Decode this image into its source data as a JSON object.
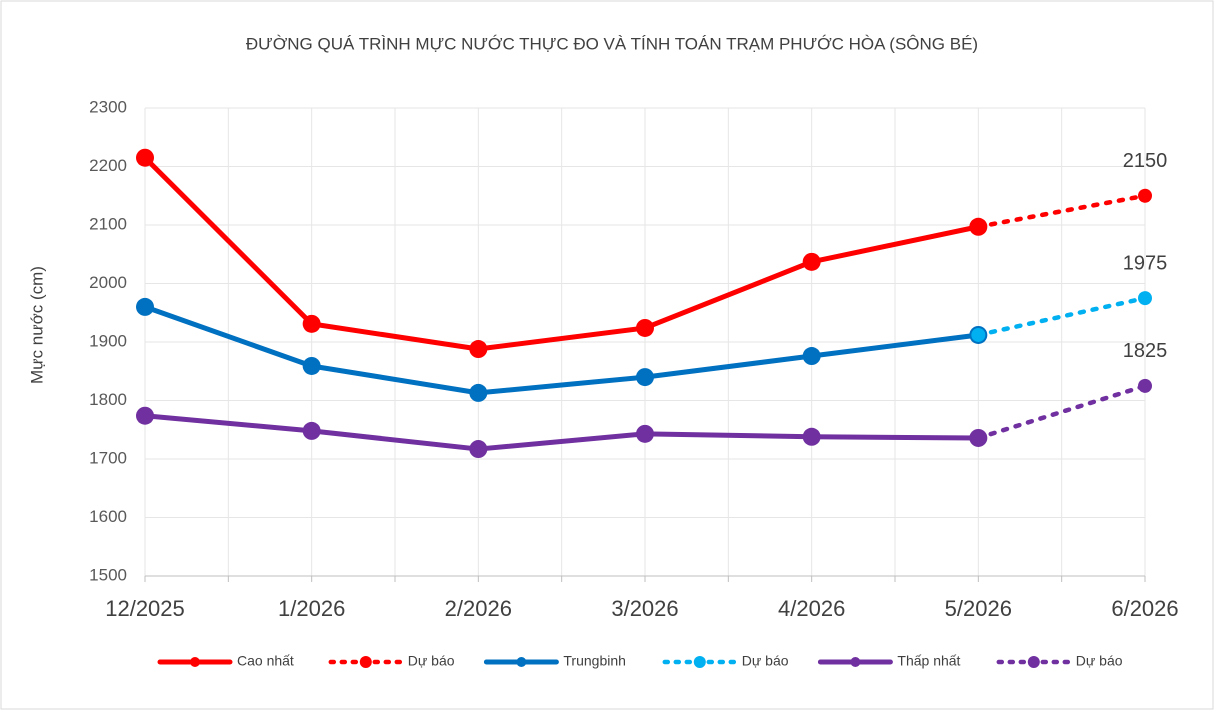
{
  "chart_data": {
    "type": "line",
    "title": "ĐƯỜNG QUÁ TRÌNH MỰC  NƯỚC THỰC ĐO VÀ TÍNH TOÁN TRẠM PHƯỚC HÒA (SÔNG BÉ)",
    "y_label": "Mực nước (cm)",
    "categories": [
      "12/2025",
      "1/2026",
      "2/2026",
      "3/2026",
      "4/2026",
      "5/2026",
      "6/2026"
    ],
    "ylim": [
      1500,
      2300
    ],
    "yticks": [
      1500,
      1600,
      1700,
      1800,
      1900,
      2000,
      2100,
      2200,
      2300
    ],
    "grid": true,
    "legend": "bottom",
    "series": [
      {
        "name": "Cao nhất",
        "color": "#ff0000",
        "style": "solid",
        "values": [
          2215,
          1931,
          1888,
          1924,
          2037,
          2097,
          null
        ]
      },
      {
        "name": "Dự báo",
        "color": "#ff0000",
        "style": "dotted",
        "values": [
          null,
          null,
          null,
          null,
          null,
          2097,
          2150
        ],
        "data_label": 6
      },
      {
        "name": "Trungbinh",
        "color": "#0070c0",
        "style": "solid",
        "values": [
          1960,
          1859,
          1813,
          1840,
          1876,
          1912,
          null
        ]
      },
      {
        "name": "Dự báo",
        "color": "#00b0f0",
        "style": "dotted",
        "values": [
          null,
          null,
          null,
          null,
          null,
          1912,
          1975
        ],
        "data_label": 6
      },
      {
        "name": "Thấp nhất",
        "color": "#7030a0",
        "style": "solid",
        "values": [
          1774,
          1748,
          1717,
          1743,
          1738,
          1736,
          null
        ]
      },
      {
        "name": "Dự báo",
        "color": "#7030a0",
        "style": "dotted",
        "values": [
          null,
          null,
          null,
          null,
          null,
          1736,
          1825
        ],
        "data_label": 6
      }
    ]
  }
}
